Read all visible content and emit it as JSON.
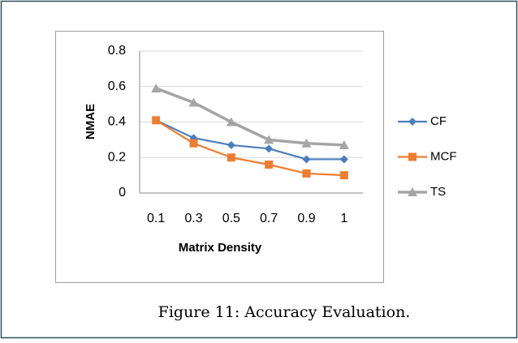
{
  "chart_data": {
    "type": "line",
    "categories": [
      "0.1",
      "0.3",
      "0.5",
      "0.7",
      "0.9",
      "1"
    ],
    "series": [
      {
        "name": "CF",
        "color": "#4a7ebb",
        "marker": "diamond",
        "values": [
          0.41,
          0.31,
          0.27,
          0.25,
          0.19,
          0.19
        ]
      },
      {
        "name": "MCF",
        "color": "#ed7d31",
        "marker": "square",
        "values": [
          0.41,
          0.28,
          0.2,
          0.16,
          0.11,
          0.1
        ]
      },
      {
        "name": "TS",
        "color": "#a5a5a5",
        "marker": "triangle",
        "values": [
          0.59,
          0.51,
          0.4,
          0.3,
          0.28,
          0.27
        ]
      }
    ],
    "ylim": [
      0,
      0.8
    ],
    "yticks": [
      0,
      0.2,
      0.4,
      0.6,
      0.8
    ],
    "grid": true,
    "xlabel": "Matrix Density",
    "ylabel": "NMAE",
    "legend": "right",
    "caption": "Figure 11: Accuracy Evaluation."
  }
}
